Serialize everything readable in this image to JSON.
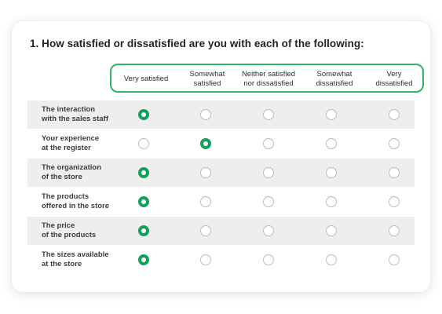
{
  "question": {
    "title": "1. How satisfied or dissatisfied are you with each of the following:"
  },
  "columns": [
    "Very satisfied",
    "Somewhat\nsatisfied",
    "Neither satisfied\nnor dissatisfied",
    "Somewhat\ndissatisfied",
    "Very\ndissatisfied"
  ],
  "rows": [
    {
      "label": "The interaction\nwith the sales staff",
      "selected": 0
    },
    {
      "label": "Your experience\nat the register",
      "selected": 1
    },
    {
      "label": "The organization\nof the store",
      "selected": 0
    },
    {
      "label": "The products\noffered in the store",
      "selected": 0
    },
    {
      "label": "The price\nof the products",
      "selected": 0
    },
    {
      "label": "The sizes available\nat the store",
      "selected": 0
    }
  ],
  "colors": {
    "accent": "#2fb36b",
    "selected": "#12a05a",
    "row_shade": "#eeeeee",
    "radio_border": "#b9bcbe"
  }
}
